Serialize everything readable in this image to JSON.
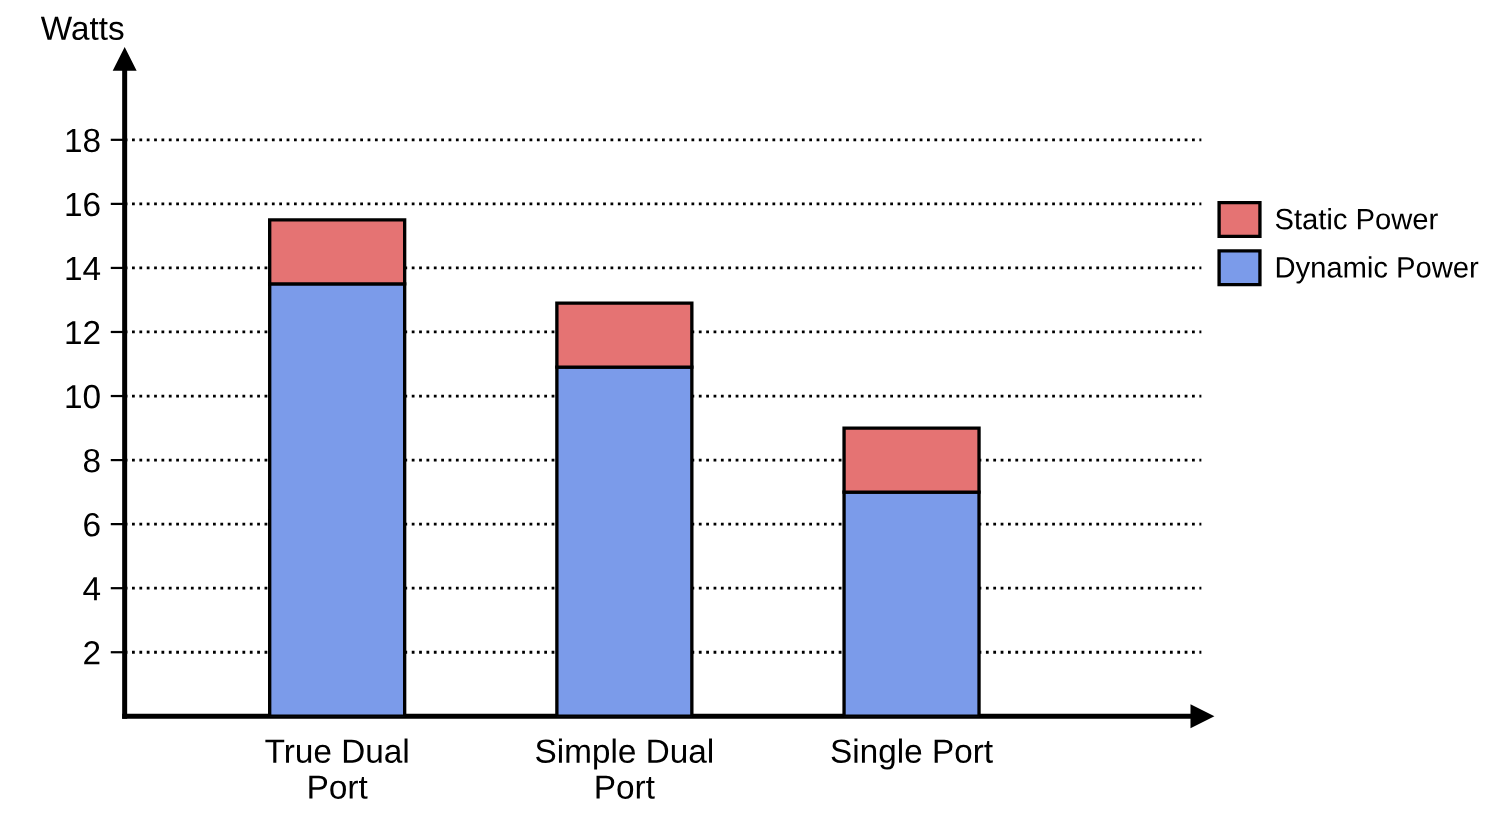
{
  "chart_data": {
    "type": "bar",
    "stacked": true,
    "ylabel": "Watts",
    "categories": [
      "True Dual\nPort",
      "Simple Dual\nPort",
      "Single Port"
    ],
    "series": [
      {
        "name": "Dynamic Power",
        "color": "#7b9bea",
        "values": [
          13.5,
          10.9,
          7.0
        ]
      },
      {
        "name": "Static Power",
        "color": "#e57373",
        "values": [
          2.0,
          2.0,
          2.0
        ]
      }
    ],
    "ylim": [
      0,
      20.5
    ],
    "yticks": [
      2,
      4,
      6,
      8,
      10,
      12,
      14,
      16,
      18
    ],
    "grid": "y",
    "legend": "right"
  }
}
